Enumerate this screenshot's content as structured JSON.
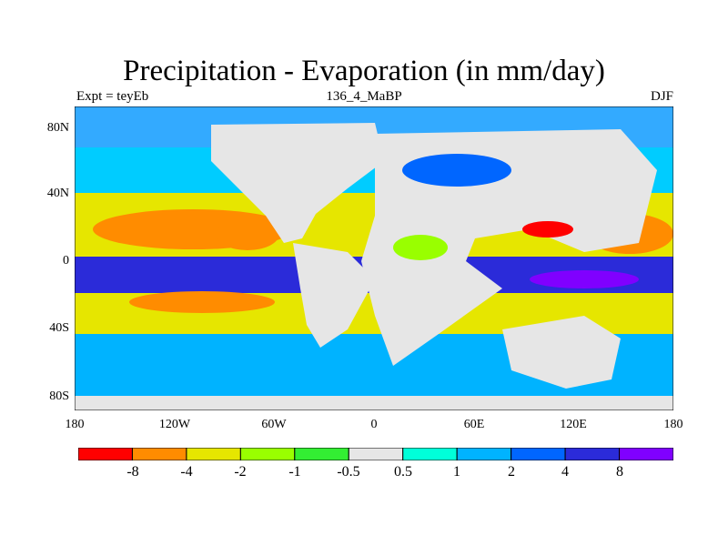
{
  "title": "Precipitation - Evaporation (in mm/day)",
  "subtitle_left": "Expt = teyEb",
  "subtitle_center": "136_4_MaBP",
  "subtitle_right": "DJF",
  "y_ticks": [
    "80N",
    "40N",
    "0",
    "40S",
    "80S"
  ],
  "x_ticks": [
    "180",
    "120W",
    "60W",
    "0",
    "60E",
    "120E",
    "180"
  ],
  "colorbar": {
    "labels": [
      "-8",
      "-4",
      "-2",
      "-1",
      "-0.5",
      "0.5",
      "1",
      "2",
      "4",
      "8"
    ],
    "colors": [
      "#ff0000",
      "#ff8c00",
      "#e6e600",
      "#99ff00",
      "#33ee33",
      "#e6e6e6",
      "#00ffd9",
      "#00b3ff",
      "#0066ff",
      "#2b2bd9",
      "#8000ff"
    ]
  },
  "field_colors": {
    "land": "#e6e6e6",
    "polar": "#33aaff",
    "midlat_north": "#00ccff",
    "midlat_south": "#00b3ff",
    "subtropic_high": "#e6e600",
    "subtropic_core": "#ff8c00",
    "subtropic_extreme": "#ff0000",
    "itcz": "#2b2bd9",
    "itcz_core": "#8000ff",
    "wet_land": "#0066ff",
    "dry_land": "#99ff00"
  }
}
